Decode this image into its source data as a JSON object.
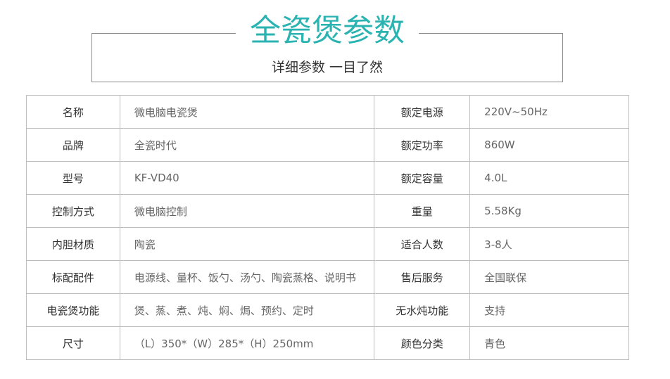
{
  "header": {
    "title": "全瓷煲参数",
    "subtitle": "详细参数 一目了然"
  },
  "table": {
    "rows": [
      [
        "名称",
        "微电脑电瓷煲",
        "额定电源",
        "220V~50Hz"
      ],
      [
        "品牌",
        "全瓷时代",
        "额定功率",
        "860W"
      ],
      [
        "型号",
        "KF-VD40",
        "额定容量",
        "4.0L"
      ],
      [
        "控制方式",
        "微电脑控制",
        "重量",
        "5.58Kg"
      ],
      [
        "内胆材质",
        "陶瓷",
        "适合人数",
        "3-8人"
      ],
      [
        "标配配件",
        "电源线、量杯、饭勺、汤勺、陶瓷蒸格、说明书",
        "售后服务",
        "全国联保"
      ],
      [
        "电瓷煲功能",
        "煲、蒸、煮、炖、焖、焗、预约、定时",
        "无水炖功能",
        "支持"
      ],
      [
        "尺寸",
        "（L）350*（W）285*（H）250mm",
        "颜色分类",
        "青色"
      ]
    ]
  }
}
